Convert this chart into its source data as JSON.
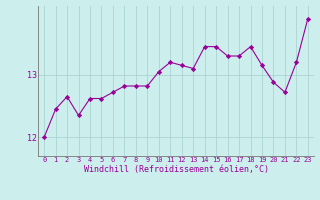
{
  "x": [
    0,
    1,
    2,
    3,
    4,
    5,
    6,
    7,
    8,
    9,
    10,
    11,
    12,
    13,
    14,
    15,
    16,
    17,
    18,
    19,
    20,
    21,
    22,
    23
  ],
  "y": [
    12.0,
    12.45,
    12.65,
    12.35,
    12.62,
    12.62,
    12.72,
    12.82,
    12.82,
    12.82,
    13.05,
    13.2,
    13.15,
    13.1,
    13.45,
    13.45,
    13.3,
    13.3,
    13.45,
    13.15,
    12.88,
    12.72,
    13.2,
    13.9
  ],
  "line_color": "#990099",
  "marker": "D",
  "marker_size": 2.2,
  "bg_color": "#cceeed",
  "grid_color": "#aad4d3",
  "xlabel": "Windchill (Refroidissement éolien,°C)",
  "xlabel_color": "#990099",
  "yticks": [
    12,
    13
  ],
  "xticks": [
    0,
    1,
    2,
    3,
    4,
    5,
    6,
    7,
    8,
    9,
    10,
    11,
    12,
    13,
    14,
    15,
    16,
    17,
    18,
    19,
    20,
    21,
    22,
    23
  ],
  "ylim": [
    11.7,
    14.1
  ],
  "xlim": [
    -0.5,
    23.5
  ],
  "tick_fontsize": 5.0,
  "xlabel_fontsize": 6.0,
  "ylabel_fontsize": 6.0,
  "linewidth": 0.8
}
